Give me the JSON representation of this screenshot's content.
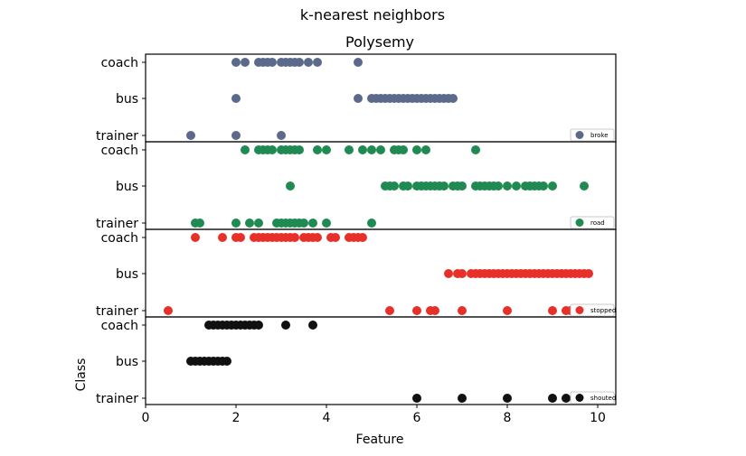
{
  "figure": {
    "suptitle": "k-nearest neighbors",
    "title": "Polysemy",
    "xlabel": "Feature",
    "ylabel": "Class"
  },
  "chart_data": {
    "type": "scatter",
    "title": "Polysemy",
    "xlabel": "Feature",
    "ylabel": "Class",
    "xlim": [
      0,
      10.4
    ],
    "xticks": [
      0,
      2,
      4,
      6,
      8,
      10
    ],
    "categories": [
      "trainer",
      "bus",
      "coach"
    ],
    "legend_position": "bottom-right",
    "grid": false,
    "panels": [
      {
        "name": "broke",
        "color": "#5b6a8a",
        "points": {
          "coach": [
            2.0,
            2.2,
            2.5,
            2.6,
            2.7,
            2.8,
            3.0,
            3.1,
            3.2,
            3.3,
            3.4,
            3.6,
            3.8,
            4.7
          ],
          "bus": [
            2.0,
            4.7,
            5.0,
            5.1,
            5.2,
            5.3,
            5.4,
            5.5,
            5.6,
            5.7,
            5.8,
            5.9,
            6.0,
            6.1,
            6.2,
            6.3,
            6.4,
            6.5,
            6.6,
            6.7,
            6.8
          ],
          "trainer": [
            1.0,
            2.0,
            3.0
          ]
        }
      },
      {
        "name": "road",
        "color": "#1f8a52",
        "points": {
          "coach": [
            2.2,
            2.5,
            2.6,
            2.7,
            2.8,
            3.0,
            3.1,
            3.2,
            3.3,
            3.4,
            3.8,
            4.0,
            4.5,
            4.8,
            5.0,
            5.2,
            5.5,
            5.6,
            5.7,
            6.0,
            6.2,
            7.3
          ],
          "bus": [
            3.2,
            5.3,
            5.4,
            5.5,
            5.7,
            5.8,
            6.0,
            6.1,
            6.2,
            6.3,
            6.4,
            6.5,
            6.6,
            6.8,
            6.9,
            7.0,
            7.3,
            7.4,
            7.5,
            7.6,
            7.7,
            7.8,
            8.0,
            8.2,
            8.4,
            8.5,
            8.6,
            8.7,
            8.8,
            9.0,
            9.7
          ],
          "trainer": [
            1.1,
            1.2,
            2.0,
            2.3,
            2.5,
            2.9,
            3.0,
            3.1,
            3.2,
            3.3,
            3.4,
            3.5,
            3.7,
            4.0,
            5.0
          ]
        }
      },
      {
        "name": "stopped",
        "color": "#e8302a",
        "points": {
          "coach": [
            1.1,
            1.7,
            2.0,
            2.1,
            2.4,
            2.5,
            2.6,
            2.7,
            2.8,
            2.9,
            3.0,
            3.1,
            3.2,
            3.3,
            3.5,
            3.6,
            3.7,
            3.8,
            4.1,
            4.2,
            4.5,
            4.6,
            4.7,
            4.8
          ],
          "bus": [
            6.7,
            6.9,
            7.0,
            7.2,
            7.3,
            7.4,
            7.5,
            7.6,
            7.7,
            7.8,
            7.9,
            8.0,
            8.1,
            8.2,
            8.3,
            8.4,
            8.5,
            8.6,
            8.7,
            8.8,
            8.9,
            9.0,
            9.1,
            9.2,
            9.3,
            9.4,
            9.5,
            9.6,
            9.7,
            9.8
          ],
          "trainer": [
            0.5,
            5.4,
            6.0,
            6.3,
            6.4,
            7.0,
            8.0,
            9.0,
            9.3,
            9.4
          ]
        }
      },
      {
        "name": "shouted",
        "color": "#111111",
        "points": {
          "coach": [
            1.4,
            1.5,
            1.6,
            1.7,
            1.8,
            1.9,
            2.0,
            2.1,
            2.2,
            2.3,
            2.4,
            2.5,
            3.1,
            3.7
          ],
          "bus": [
            1.0,
            1.1,
            1.2,
            1.3,
            1.4,
            1.5,
            1.6,
            1.7,
            1.8
          ],
          "trainer": [
            6.0,
            7.0,
            8.0,
            9.0,
            9.3
          ]
        }
      }
    ]
  }
}
